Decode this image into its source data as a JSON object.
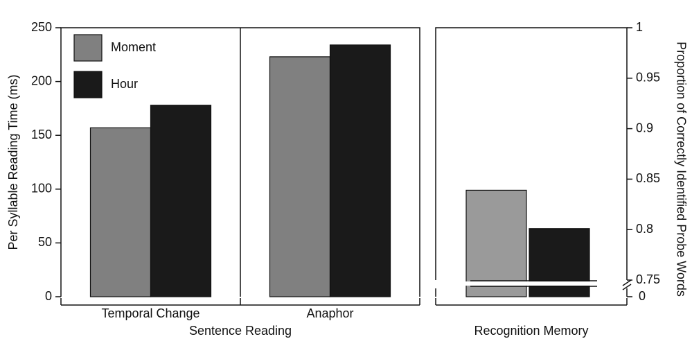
{
  "chart_data": [
    {
      "type": "bar",
      "ylabel": "Per Syllable Reading Time (ms)",
      "xlabel": "Sentence Reading",
      "categories": [
        "Temporal Change",
        "Anaphor"
      ],
      "series": [
        {
          "name": "Moment",
          "color": "#808080",
          "values": [
            157,
            223
          ]
        },
        {
          "name": "Hour",
          "color": "#1a1a1a",
          "values": [
            178,
            234
          ]
        }
      ],
      "ylim": [
        0,
        250
      ],
      "yticks": [
        0,
        50,
        100,
        150,
        200,
        250
      ],
      "legend": "upper left"
    },
    {
      "type": "bar",
      "ylabel": "Proportion of Correctly Identified Probe Words",
      "categories": [
        "Recognition Memory"
      ],
      "series": [
        {
          "name": "Moment",
          "color": "#9a9a9a",
          "values": [
            0.839
          ]
        },
        {
          "name": "Hour",
          "color": "#1a1a1a",
          "values": [
            0.801
          ]
        }
      ],
      "ylim": [
        0.75,
        1
      ],
      "yticks": [
        0.75,
        0.8,
        0.85,
        0.9,
        0.95,
        1
      ],
      "axis_break": {
        "value": 0
      }
    }
  ]
}
